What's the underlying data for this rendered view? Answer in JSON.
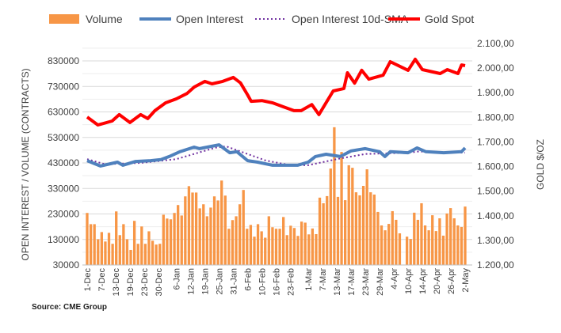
{
  "chart_data": {
    "type": "bar+line",
    "title": "",
    "ylabel_left": "OPEN INTEREST / VOLUME (CONTRACTS)",
    "ylabel_right": "GOLD $/OZ",
    "source": "Source: CME Group",
    "legend": [
      {
        "name": "Volume",
        "color": "#F79646",
        "kind": "bar"
      },
      {
        "name": "Open Interest",
        "color": "#4F81BD",
        "kind": "line"
      },
      {
        "name": "Open Interest 10d-SMA",
        "color": "#7030A0",
        "kind": "dotted"
      },
      {
        "name": "Gold Spot",
        "color": "#FF0000",
        "kind": "line"
      }
    ],
    "legend_position": "top",
    "left_axis": {
      "min": 30000,
      "max": 830000,
      "ticks": [
        "30000",
        "130000",
        "230000",
        "330000",
        "430000",
        "530000",
        "630000",
        "730000",
        "830000"
      ]
    },
    "right_axis": {
      "min": 1200,
      "max": 2100,
      "ticks": [
        "1.200,00",
        "1.300,00",
        "1.400,00",
        "1.500,00",
        "1.600,00",
        "1.700,00",
        "1.800,00",
        "1.900,00",
        "2.000,00",
        "2.100,00"
      ]
    },
    "x_domain": [
      0,
      106
    ],
    "x_ticks": [
      {
        "i": 0,
        "label": "1-Dec"
      },
      {
        "i": 4,
        "label": "7-Dec"
      },
      {
        "i": 8,
        "label": "13-Dec"
      },
      {
        "i": 12,
        "label": "19-Dec"
      },
      {
        "i": 16,
        "label": "23-Dec"
      },
      {
        "i": 20,
        "label": "30-Dec"
      },
      {
        "i": 25,
        "label": "6-Jan"
      },
      {
        "i": 29,
        "label": "12-Jan"
      },
      {
        "i": 33,
        "label": "19-Jan"
      },
      {
        "i": 37,
        "label": "25-Jan"
      },
      {
        "i": 41,
        "label": "31-Jan"
      },
      {
        "i": 45,
        "label": "6-Feb"
      },
      {
        "i": 49,
        "label": "10-Feb"
      },
      {
        "i": 53,
        "label": "16-Feb"
      },
      {
        "i": 57,
        "label": "23-Feb"
      },
      {
        "i": 62,
        "label": "1-Mar"
      },
      {
        "i": 66,
        "label": "7-Mar"
      },
      {
        "i": 70,
        "label": "13-Mar"
      },
      {
        "i": 74,
        "label": "17-Mar"
      },
      {
        "i": 78,
        "label": "23-Mar"
      },
      {
        "i": 82,
        "label": "29-Mar"
      },
      {
        "i": 86,
        "label": "4-Apr"
      },
      {
        "i": 90,
        "label": "10-Apr"
      },
      {
        "i": 94,
        "label": "14-Apr"
      },
      {
        "i": 98,
        "label": "20-Apr"
      },
      {
        "i": 102,
        "label": "26-Apr"
      },
      {
        "i": 106,
        "label": "2-May"
      }
    ],
    "volume": [
      234000,
      190000,
      190000,
      131000,
      159000,
      122000,
      156000,
      113000,
      240000,
      147000,
      190000,
      131000,
      89000,
      203000,
      113000,
      181000,
      113000,
      162000,
      125000,
      110000,
      113000,
      227000,
      212000,
      209000,
      234000,
      265000,
      224000,
      299000,
      339000,
      314000,
      314000,
      252000,
      268000,
      221000,
      255000,
      299000,
      283000,
      361000,
      302000,
      172000,
      206000,
      221000,
      268000,
      324000,
      172000,
      187000,
      141000,
      190000,
      162000,
      137000,
      221000,
      178000,
      172000,
      172000,
      218000,
      147000,
      184000,
      175000,
      144000,
      200000,
      196000,
      150000,
      173000,
      151000,
      294000,
      272000,
      300000,
      408000,
      570000,
      297000,
      473000,
      284000,
      421000,
      411000,
      315000,
      303000,
      340000,
      405000,
      315000,
      306000,
      238000,
      185000,
      166000,
      191000,
      241000,
      207000,
      154000,
      null,
      141000,
      132000,
      235000,
      207000,
      272000,
      185000,
      166000,
      225000,
      163000,
      213000,
      145000,
      232000,
      253000,
      213000,
      185000,
      179000,
      259000
    ],
    "open_interest": [
      [
        0,
        439000
      ],
      [
        3.7,
        418000
      ],
      [
        8.5,
        433000
      ],
      [
        10,
        421000
      ],
      [
        13.6,
        436000
      ],
      [
        17.8,
        439000
      ],
      [
        20.7,
        443000
      ],
      [
        23,
        455000
      ],
      [
        26,
        474000
      ],
      [
        30,
        492000
      ],
      [
        31.5,
        486000
      ],
      [
        37,
        501000
      ],
      [
        40,
        470000
      ],
      [
        42,
        474000
      ],
      [
        45,
        439000
      ],
      [
        47.8,
        433000
      ],
      [
        52,
        421000
      ],
      [
        59,
        421000
      ],
      [
        62,
        433000
      ],
      [
        64,
        455000
      ],
      [
        67,
        464000
      ],
      [
        71,
        455000
      ],
      [
        74,
        477000
      ],
      [
        78,
        486000
      ],
      [
        82,
        474000
      ],
      [
        83.5,
        455000
      ],
      [
        85,
        474000
      ],
      [
        90,
        470000
      ],
      [
        92.5,
        489000
      ],
      [
        95,
        474000
      ],
      [
        100,
        470000
      ],
      [
        105,
        474000
      ],
      [
        106,
        489000
      ]
    ],
    "open_interest_sma": [
      [
        0,
        445000
      ],
      [
        5,
        425000
      ],
      [
        15,
        430000
      ],
      [
        25,
        445000
      ],
      [
        36,
        490000
      ],
      [
        39,
        495000
      ],
      [
        44,
        470000
      ],
      [
        50,
        440000
      ],
      [
        57,
        421000
      ],
      [
        62,
        421000
      ],
      [
        70,
        445000
      ],
      [
        78,
        465000
      ],
      [
        90,
        470000
      ],
      [
        93,
        475000
      ],
      [
        106,
        470000
      ]
    ],
    "gold_spot": [
      [
        0,
        1801
      ],
      [
        3,
        1769
      ],
      [
        7,
        1785
      ],
      [
        9,
        1811
      ],
      [
        12,
        1779
      ],
      [
        15,
        1811
      ],
      [
        17,
        1795
      ],
      [
        19,
        1827
      ],
      [
        22,
        1859
      ],
      [
        25,
        1875
      ],
      [
        28,
        1897
      ],
      [
        30,
        1923
      ],
      [
        33,
        1946
      ],
      [
        35,
        1936
      ],
      [
        38,
        1946
      ],
      [
        41,
        1962
      ],
      [
        43,
        1940
      ],
      [
        45,
        1891
      ],
      [
        46,
        1865
      ],
      [
        49,
        1868
      ],
      [
        52,
        1859
      ],
      [
        55,
        1843
      ],
      [
        58,
        1827
      ],
      [
        60,
        1827
      ],
      [
        63,
        1852
      ],
      [
        65,
        1811
      ],
      [
        69,
        1907
      ],
      [
        72,
        1917
      ],
      [
        73,
        1981
      ],
      [
        75,
        1939
      ],
      [
        77,
        1991
      ],
      [
        79,
        1955
      ],
      [
        83,
        1971
      ],
      [
        85,
        2026
      ],
      [
        90,
        1991
      ],
      [
        92,
        2036
      ],
      [
        94,
        1994
      ],
      [
        99,
        1978
      ],
      [
        101,
        1994
      ],
      [
        104,
        1978
      ],
      [
        105,
        2013
      ],
      [
        106,
        2010
      ]
    ]
  }
}
